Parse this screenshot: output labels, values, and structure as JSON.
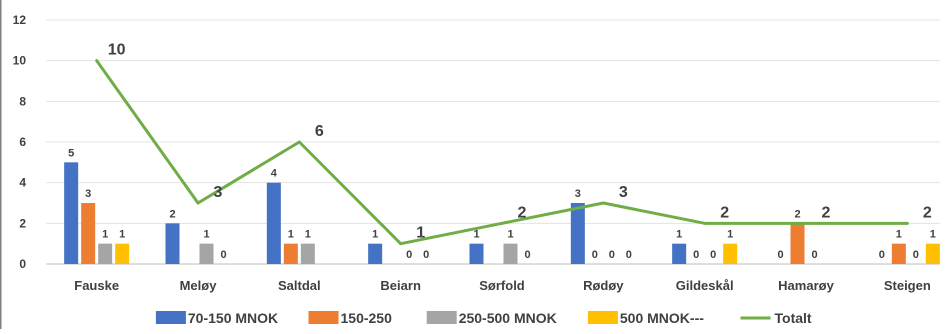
{
  "chart_data": {
    "type": "bar",
    "categories": [
      "Fauske",
      "Meløy",
      "Saltdal",
      "Beiarn",
      "Sørfold",
      "Rødøy",
      "Gildeskål",
      "Hamarøy",
      "Steigen"
    ],
    "series": [
      {
        "name": "70-150 MNOK",
        "type": "bar",
        "color": "#4472C4",
        "values": [
          5,
          2,
          4,
          1,
          1,
          3,
          1,
          0,
          0
        ]
      },
      {
        "name": "150-250",
        "type": "bar",
        "color": "#ED7D31",
        "values": [
          3,
          null,
          1,
          null,
          null,
          0,
          0,
          2,
          1
        ]
      },
      {
        "name": "250-500 MNOK",
        "type": "bar",
        "color": "#A5A5A5",
        "values": [
          1,
          1,
          1,
          0,
          1,
          0,
          0,
          0,
          0
        ]
      },
      {
        "name": "500 MNOK---",
        "type": "bar",
        "color": "#FFC000",
        "values": [
          1,
          0,
          null,
          0,
          0,
          0,
          1,
          null,
          1
        ]
      },
      {
        "name": "Totalt",
        "type": "line",
        "color": "#70AD47",
        "values": [
          10,
          3,
          6,
          1,
          2,
          3,
          2,
          2,
          2
        ]
      }
    ],
    "y_ticks": [
      0,
      2,
      4,
      6,
      8,
      10,
      12
    ],
    "ylim": [
      0,
      12
    ],
    "grid": true,
    "legend": "bottom"
  }
}
